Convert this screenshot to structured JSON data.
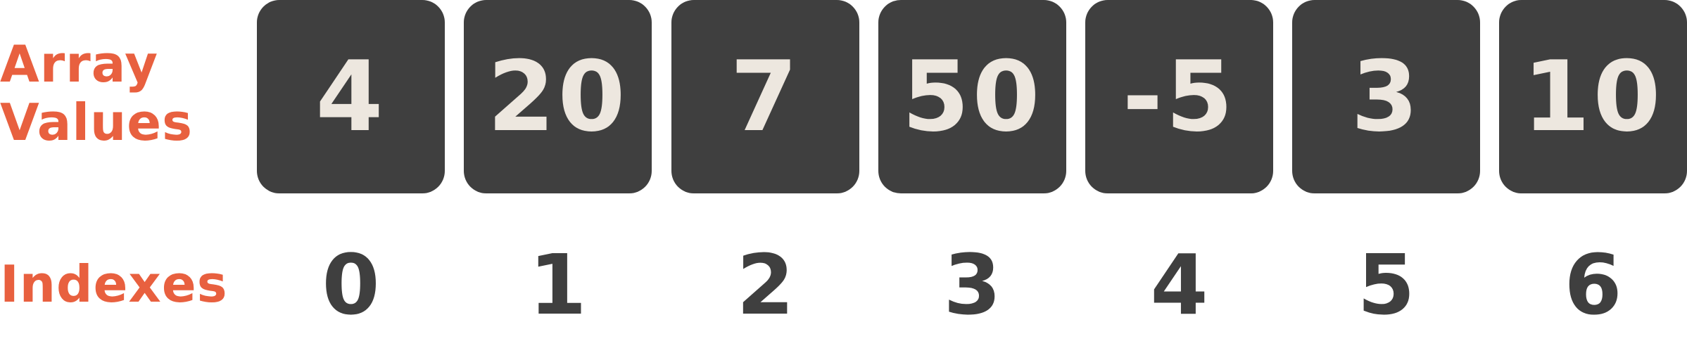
{
  "labels": {
    "array_line1": "Array",
    "array_line2": "Values",
    "indexes": "Indexes"
  },
  "array": {
    "values": [
      "4",
      "20",
      "7",
      "50",
      "-5",
      "3",
      "10"
    ],
    "indexes": [
      "0",
      "1",
      "2",
      "3",
      "4",
      "5",
      "6"
    ]
  },
  "colors": {
    "label": "#e8603f",
    "cell_bg": "#3f3f3f",
    "cell_text": "#ede7df",
    "index_text": "#3f3f3f"
  }
}
